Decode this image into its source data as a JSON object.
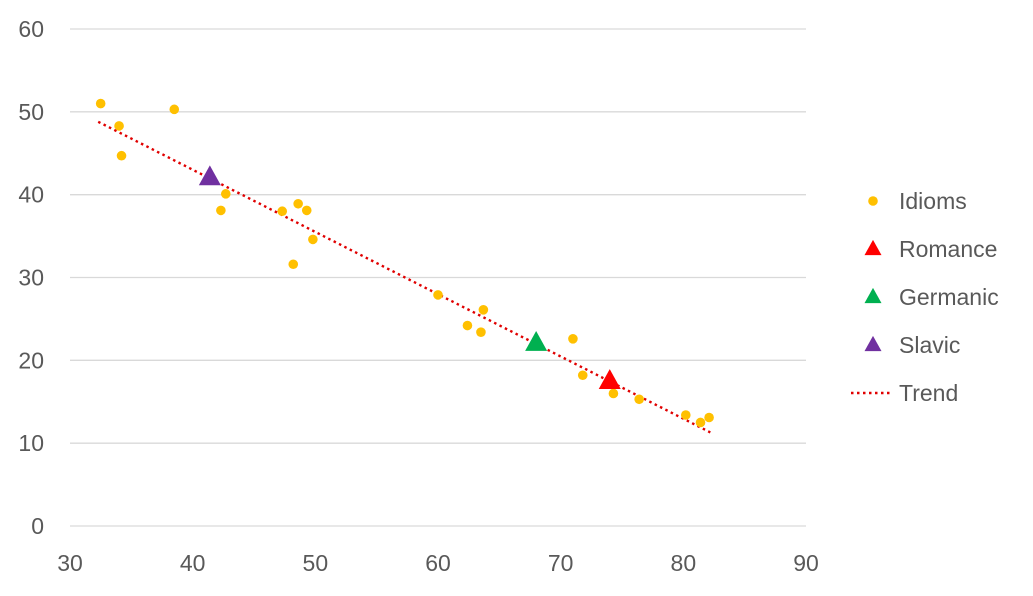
{
  "chart_data": {
    "type": "scatter",
    "title": "",
    "xlabel": "",
    "ylabel": "",
    "xlim": [
      30,
      90
    ],
    "ylim": [
      0,
      60
    ],
    "x_ticks": [
      "30",
      "40",
      "50",
      "60",
      "70",
      "80",
      "90"
    ],
    "y_ticks": [
      "0",
      "10",
      "20",
      "30",
      "40",
      "50",
      "60"
    ],
    "grid": "horizontal",
    "legend_position": "right",
    "colors": {
      "idioms": "#FFC000",
      "romance": "#FF0000",
      "germanic": "#00B050",
      "slavic": "#7030A0",
      "trend": "#E00000",
      "grid": "#D9D9D9",
      "text": "#595959"
    },
    "series": [
      {
        "name": "Idioms",
        "marker": "circle",
        "points": [
          [
            32.5,
            51.0
          ],
          [
            34.0,
            48.3
          ],
          [
            34.2,
            44.7
          ],
          [
            38.5,
            50.3
          ],
          [
            42.3,
            38.1
          ],
          [
            42.7,
            40.1
          ],
          [
            47.3,
            38.0
          ],
          [
            48.2,
            31.6
          ],
          [
            48.6,
            38.9
          ],
          [
            49.3,
            38.1
          ],
          [
            49.8,
            34.6
          ],
          [
            60.0,
            27.9
          ],
          [
            62.4,
            24.2
          ],
          [
            63.5,
            23.4
          ],
          [
            63.7,
            26.1
          ],
          [
            71.0,
            22.6
          ],
          [
            71.8,
            18.2
          ],
          [
            74.3,
            16.0
          ],
          [
            76.4,
            15.3
          ],
          [
            80.2,
            13.4
          ],
          [
            81.4,
            12.5
          ],
          [
            82.1,
            13.1
          ]
        ]
      },
      {
        "name": "Romance",
        "marker": "triangle",
        "points": [
          [
            74.0,
            17.5
          ]
        ]
      },
      {
        "name": "Germanic",
        "marker": "triangle",
        "points": [
          [
            68.0,
            22.1
          ]
        ]
      },
      {
        "name": "Slavic",
        "marker": "triangle",
        "points": [
          [
            41.4,
            42.1
          ]
        ]
      },
      {
        "name": "Trend",
        "line": "dotted",
        "points": [
          [
            32.3,
            48.8
          ],
          [
            82.2,
            11.3
          ]
        ]
      }
    ]
  }
}
